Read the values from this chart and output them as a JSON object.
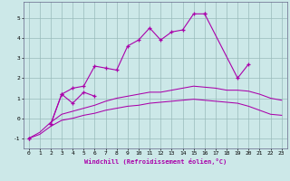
{
  "x_values": [
    0,
    1,
    2,
    3,
    4,
    5,
    6,
    7,
    8,
    9,
    10,
    11,
    12,
    13,
    14,
    15,
    16,
    17,
    18,
    19,
    20,
    21,
    22,
    23
  ],
  "line_main": [
    -1.0,
    null,
    -0.3,
    1.2,
    1.5,
    1.6,
    2.6,
    2.5,
    2.4,
    3.6,
    3.9,
    4.5,
    3.9,
    4.3,
    4.4,
    5.2,
    5.2,
    null,
    null,
    null,
    null,
    null,
    null,
    null
  ],
  "line_secondary": [
    null,
    null,
    null,
    null,
    null,
    null,
    null,
    null,
    null,
    null,
    null,
    null,
    null,
    null,
    null,
    null,
    5.2,
    null,
    null,
    2.0,
    2.7,
    null,
    null,
    null
  ],
  "line_low_zigzag": [
    -1.0,
    null,
    -0.3,
    1.2,
    0.75,
    1.3,
    1.1,
    null,
    null,
    null,
    null,
    null,
    null,
    null,
    null,
    null,
    null,
    null,
    null,
    null,
    null,
    null,
    null,
    null
  ],
  "line_smooth1": [
    -1.0,
    -0.8,
    -0.4,
    -0.1,
    0.0,
    0.15,
    0.25,
    0.4,
    0.5,
    0.6,
    0.65,
    0.75,
    0.8,
    0.85,
    0.9,
    0.95,
    0.9,
    0.85,
    0.8,
    0.75,
    0.6,
    0.4,
    0.2,
    0.15
  ],
  "line_smooth2": [
    -1.0,
    -0.7,
    -0.2,
    0.2,
    0.35,
    0.5,
    0.65,
    0.85,
    1.0,
    1.1,
    1.2,
    1.3,
    1.3,
    1.4,
    1.5,
    1.6,
    1.55,
    1.5,
    1.4,
    1.4,
    1.35,
    1.2,
    1.0,
    0.9
  ],
  "xlabel": "Windchill (Refroidissement éolien,°C)",
  "ylim": [
    -1.5,
    5.8
  ],
  "xlim": [
    -0.5,
    23.5
  ],
  "yticks": [
    -1,
    0,
    1,
    2,
    3,
    4,
    5
  ],
  "bg_color": "#cce8e8",
  "line_color": "#aa00aa",
  "grid_color": "#99bbbb"
}
